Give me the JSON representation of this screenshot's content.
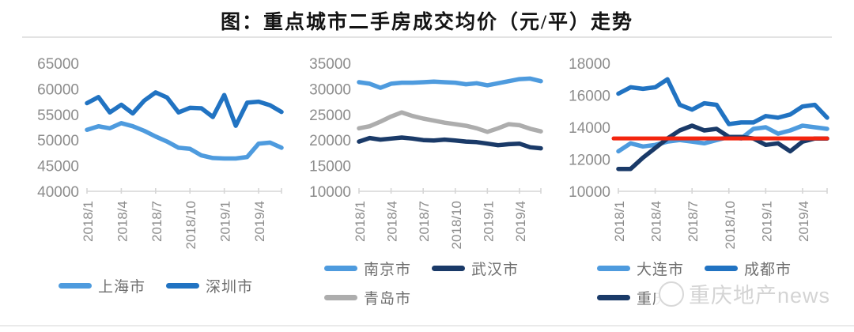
{
  "page": {
    "title": "图：重点城市二手房成交均价（元/平）走势"
  },
  "watermark": {
    "text": "重庆地产news",
    "logo": "panda-logo"
  },
  "colors": {
    "light_blue": "#4e9bde",
    "medium_blue": "#2173c2",
    "navy": "#1a3a68",
    "gray": "#adadad",
    "red": "#f3250f",
    "axis_text": "#8c8c8c",
    "axis_line": "#d6d6d6",
    "legend_text": "#6e6e6e",
    "divider": "#e3e3e3",
    "watermark_gray": "#d4d4d4",
    "title_text": "#141414"
  },
  "chart_data": [
    {
      "type": "line",
      "title": "",
      "xlabel": "",
      "ylabel": "",
      "unit": "元/平",
      "grid": false,
      "legend_position": "bottom",
      "ylim": [
        40000,
        65000
      ],
      "yticks": [
        40000,
        45000,
        50000,
        55000,
        60000,
        65000
      ],
      "x_labels": [
        "2018/1",
        "2018/4",
        "2018/7",
        "2018/10",
        "2019/1",
        "2019/4"
      ],
      "x_tick_indices": [
        0,
        3,
        6,
        9,
        12,
        15
      ],
      "x_range_note": "monthly 2018/1 - 2019/6",
      "series": [
        {
          "name": "上海市",
          "key": "shanghai",
          "color": "light_blue",
          "values": [
            52000,
            52700,
            52300,
            53300,
            52700,
            51800,
            50700,
            49700,
            48500,
            48300,
            47000,
            46500,
            46400,
            46400,
            46700,
            49300,
            49500,
            48500
          ]
        },
        {
          "name": "深圳市",
          "key": "shenzhen",
          "color": "medium_blue",
          "values": [
            57200,
            58400,
            55400,
            56900,
            55200,
            57700,
            59300,
            58300,
            55400,
            56300,
            56200,
            54500,
            58800,
            52800,
            57300,
            57500,
            56800,
            55500
          ]
        }
      ],
      "legend_rows": [
        [
          "上海市",
          "深圳市"
        ]
      ]
    },
    {
      "type": "line",
      "title": "",
      "xlabel": "",
      "ylabel": "",
      "unit": "元/平",
      "grid": false,
      "legend_position": "bottom",
      "ylim": [
        10000,
        35000
      ],
      "yticks": [
        10000,
        15000,
        20000,
        25000,
        30000,
        35000
      ],
      "x_labels": [
        "2018/1",
        "2018/4",
        "2018/7",
        "2018/10",
        "2019/1",
        "2019/4"
      ],
      "x_tick_indices": [
        0,
        3,
        6,
        9,
        12,
        15
      ],
      "x_range_note": "monthly 2018/1 - 2019/6",
      "series": [
        {
          "name": "南京市",
          "key": "nanjing",
          "color": "light_blue",
          "values": [
            31300,
            31000,
            30200,
            31000,
            31200,
            31200,
            31300,
            31400,
            31300,
            31200,
            30900,
            31100,
            30700,
            31100,
            31500,
            31900,
            32000,
            31500
          ]
        },
        {
          "name": "青岛市",
          "key": "qingdao",
          "color": "gray",
          "values": [
            22300,
            22700,
            23600,
            24600,
            25400,
            24700,
            24200,
            23800,
            23400,
            23100,
            22800,
            22300,
            21600,
            22300,
            23100,
            22900,
            22200,
            21700
          ]
        },
        {
          "name": "武汉市",
          "key": "wuhan",
          "color": "navy",
          "values": [
            19700,
            20400,
            20100,
            20300,
            20500,
            20300,
            20000,
            19900,
            20100,
            19900,
            19700,
            19600,
            19300,
            19000,
            19200,
            19300,
            18600,
            18400
          ]
        }
      ],
      "legend_rows": [
        [
          "南京市",
          "武汉市"
        ],
        [
          "青岛市"
        ]
      ]
    },
    {
      "type": "line",
      "title": "",
      "xlabel": "",
      "ylabel": "",
      "unit": "元/平",
      "grid": false,
      "legend_position": "bottom",
      "ylim": [
        10000,
        18000
      ],
      "yticks": [
        10000,
        12000,
        14000,
        16000,
        18000
      ],
      "x_labels": [
        "2018/1",
        "2018/4",
        "2018/7",
        "2018/10",
        "2019/1",
        "2019/4"
      ],
      "x_tick_indices": [
        0,
        3,
        6,
        9,
        12,
        15
      ],
      "x_range_note": "monthly 2018/1 - 2019/6",
      "series": [
        {
          "name": "大连市",
          "key": "dalian",
          "color": "light_blue",
          "values": [
            12500,
            13000,
            12800,
            12900,
            13100,
            13200,
            13100,
            13000,
            13200,
            13400,
            13300,
            13900,
            14000,
            13600,
            13800,
            14100,
            14000,
            13900
          ]
        },
        {
          "name": "重庆市",
          "key": "chongqing",
          "color": "navy",
          "values": [
            11400,
            11400,
            12100,
            12700,
            13300,
            13800,
            14100,
            13800,
            13900,
            13400,
            13400,
            13300,
            12900,
            13000,
            12500,
            13100,
            13300,
            13300
          ]
        },
        {
          "name": "成都市",
          "key": "chengdu",
          "color": "medium_blue",
          "values": [
            16100,
            16500,
            16400,
            16500,
            17000,
            15400,
            15100,
            15500,
            15400,
            14200,
            14300,
            14300,
            14700,
            14600,
            14800,
            15300,
            15400,
            14600
          ]
        }
      ],
      "reference_line": {
        "value": 13300,
        "color": "red"
      },
      "legend_rows": [
        [
          "大连市",
          "成都市"
        ],
        [
          "重庆市"
        ]
      ]
    }
  ]
}
